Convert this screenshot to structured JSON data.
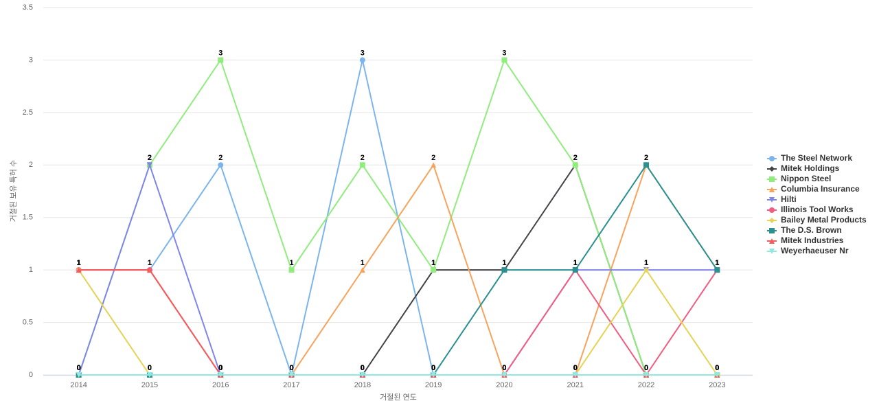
{
  "chart_data": {
    "type": "line",
    "x_label": "거절된 연도",
    "y_label": "거절된 보유 특허 수",
    "categories": [
      "2014",
      "2015",
      "2016",
      "2017",
      "2018",
      "2019",
      "2020",
      "2021",
      "2022",
      "2023"
    ],
    "ylim": [
      0,
      3.5
    ],
    "yticks": [
      0,
      0.5,
      1,
      1.5,
      2,
      2.5,
      3,
      3.5
    ],
    "grid": true,
    "legend": "right",
    "series": [
      {
        "name": "The Steel Network",
        "color": "#7cb5ec",
        "marker": "circle",
        "values": [
          1,
          1,
          2,
          0,
          3,
          0,
          0,
          0,
          0,
          0
        ]
      },
      {
        "name": "Mitek Holdings",
        "color": "#434348",
        "marker": "diamond",
        "values": [
          0,
          0,
          0,
          0,
          0,
          1,
          1,
          2,
          0,
          0
        ]
      },
      {
        "name": "Nippon Steel",
        "color": "#90ed7d",
        "marker": "square",
        "values": [
          0,
          2,
          3,
          1,
          2,
          1,
          3,
          2,
          0,
          0
        ]
      },
      {
        "name": "Columbia Insurance",
        "color": "#f7a35c",
        "marker": "triangle",
        "values": [
          0,
          0,
          0,
          0,
          1,
          2,
          0,
          0,
          2,
          1
        ]
      },
      {
        "name": "Hilti",
        "color": "#8085e9",
        "marker": "triangle-down",
        "values": [
          0,
          2,
          0,
          0,
          0,
          0,
          0,
          1,
          1,
          1
        ]
      },
      {
        "name": "Illinois Tool Works",
        "color": "#f15c80",
        "marker": "circle",
        "values": [
          1,
          1,
          0,
          0,
          0,
          0,
          0,
          1,
          0,
          1
        ]
      },
      {
        "name": "Bailey Metal Products",
        "color": "#e4d354",
        "marker": "diamond",
        "values": [
          1,
          0,
          0,
          0,
          0,
          0,
          0,
          0,
          1,
          0
        ]
      },
      {
        "name": "The D.S. Brown",
        "color": "#2b908f",
        "marker": "square",
        "values": [
          0,
          0,
          0,
          0,
          0,
          0,
          1,
          1,
          2,
          1
        ]
      },
      {
        "name": "Mitek Industries",
        "color": "#f45b5b",
        "marker": "triangle",
        "values": [
          1,
          1,
          0,
          0,
          0,
          0,
          0,
          0,
          0,
          0
        ]
      },
      {
        "name": "Weyerhaeuser Nr",
        "color": "#91e8e1",
        "marker": "triangle-down",
        "values": [
          0,
          0,
          0,
          0,
          0,
          0,
          0,
          0,
          0,
          0
        ]
      }
    ]
  }
}
